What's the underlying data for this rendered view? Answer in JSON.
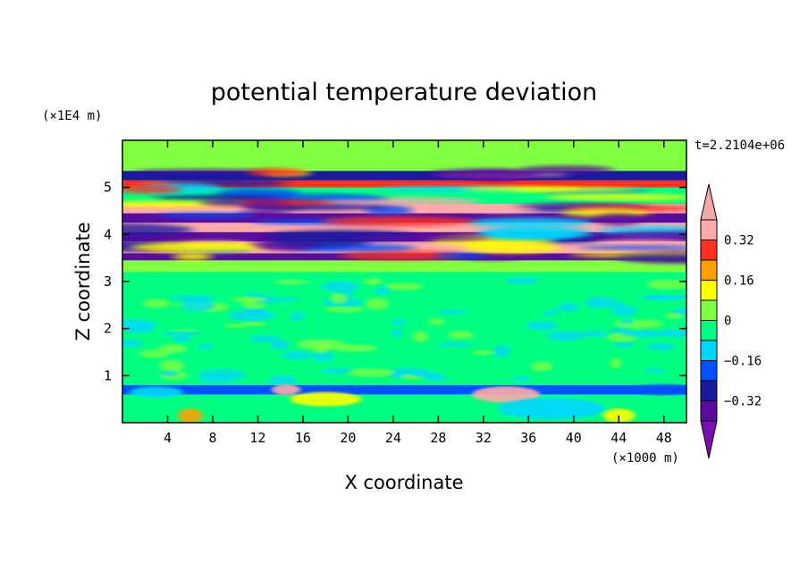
{
  "chart_data": {
    "type": "heatmap",
    "title": "potential temperature deviation",
    "xlabel": "X coordinate",
    "ylabel": "Z coordinate",
    "x_unit": "(×1000 m)",
    "y_unit": "(×1E4 m)",
    "time_label": "t=2.2104e+06",
    "xlim": [
      0,
      50
    ],
    "ylim": [
      0,
      6
    ],
    "x_ticks": [
      4,
      8,
      12,
      16,
      20,
      24,
      28,
      32,
      36,
      40,
      44,
      48
    ],
    "y_ticks": [
      1,
      2,
      3,
      4,
      5
    ],
    "colorbar": {
      "levels": [
        -0.4,
        -0.32,
        -0.24,
        -0.16,
        -0.08,
        0,
        0.08,
        0.16,
        0.24,
        0.32,
        0.4
      ],
      "labeled_levels": [
        0.32,
        0.16,
        0,
        -0.16,
        -0.32
      ],
      "colors": [
        "#5a0ca0",
        "#1a1aa0",
        "#0050ff",
        "#00d7ff",
        "#00ff80",
        "#80ff40",
        "#ffff00",
        "#ffa000",
        "#ff3020",
        "#ffaaaa"
      ],
      "under_color": "#7a10b0",
      "over_color": "#f4a8a8"
    },
    "bands": [
      {
        "z": [
          0.0,
          0.6
        ],
        "level": 4,
        "note": "green/cyan near bottom"
      },
      {
        "z": [
          0.6,
          0.8
        ],
        "level": 2
      },
      {
        "z": [
          0.8,
          3.2
        ],
        "level": 4
      },
      {
        "z": [
          3.2,
          3.45
        ],
        "level": 5
      },
      {
        "z": [
          3.45,
          3.6
        ],
        "level": 0
      },
      {
        "z": [
          3.6,
          3.85
        ],
        "level": 9
      },
      {
        "z": [
          3.85,
          4.05
        ],
        "level": 0
      },
      {
        "z": [
          4.05,
          4.25
        ],
        "level": 9
      },
      {
        "z": [
          4.25,
          4.45
        ],
        "level": 0
      },
      {
        "z": [
          4.45,
          4.65
        ],
        "level": 9
      },
      {
        "z": [
          4.65,
          5.0
        ],
        "level": 4
      },
      {
        "z": [
          5.0,
          5.15
        ],
        "level": 8
      },
      {
        "z": [
          5.15,
          5.35
        ],
        "level": 1
      },
      {
        "z": [
          5.35,
          6.0
        ],
        "level": 5
      }
    ]
  }
}
